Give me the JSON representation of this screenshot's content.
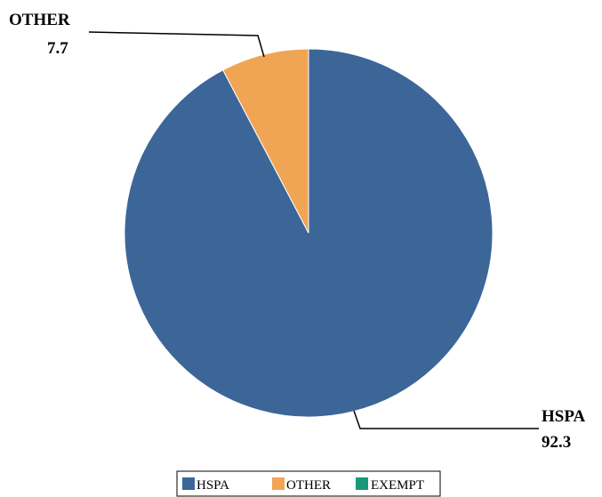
{
  "chart_data": {
    "type": "pie",
    "categories": [
      "HSPA",
      "OTHER",
      "EXEMPT"
    ],
    "values": [
      92.3,
      7.7,
      0
    ],
    "colors": [
      "#3c6698",
      "#f0a554",
      "#179a7a"
    ],
    "data_labels": [
      {
        "name": "HSPA",
        "value": "92.3"
      },
      {
        "name": "OTHER",
        "value": "7.7"
      }
    ],
    "legend": {
      "placement": "bottom",
      "entries": [
        "HSPA",
        "OTHER",
        "EXEMPT"
      ]
    }
  }
}
